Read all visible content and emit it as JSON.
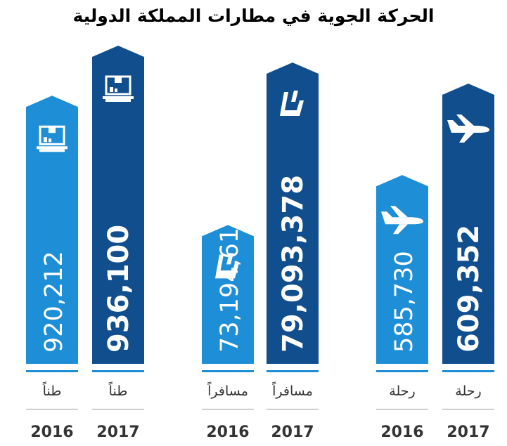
{
  "title": "الحركة الجوية في مطارات المملكة الدولية",
  "colors": {
    "light": "#1e8ed6",
    "dark": "#114e8d",
    "rule": "#1e8ed6",
    "text": "#333333"
  },
  "chart_data": {
    "type": "bar",
    "groups": [
      {
        "icon": "cargo-icon",
        "bars": [
          {
            "year": "2016",
            "value": 920212,
            "label": "920,212",
            "unit": "طناً",
            "shade": "light"
          },
          {
            "year": "2017",
            "value": 936100,
            "label": "936,100",
            "unit": "طناً",
            "shade": "dark"
          }
        ]
      },
      {
        "icon": "passenger-seat-icon",
        "bars": [
          {
            "year": "2016",
            "value": 73194614,
            "label": "73,194,614",
            "unit": "مسافراً",
            "shade": "light"
          },
          {
            "year": "2017",
            "value": 79093378,
            "label": "79,093,378",
            "unit": "مسافراً",
            "shade": "dark"
          }
        ]
      },
      {
        "icon": "airplane-icon",
        "bars": [
          {
            "year": "2016",
            "value": 585730,
            "label": "585,730",
            "unit": "رحلة",
            "shade": "light"
          },
          {
            "year": "2017",
            "value": 609352,
            "label": "609,352",
            "unit": "رحلة",
            "shade": "dark"
          }
        ]
      }
    ]
  }
}
